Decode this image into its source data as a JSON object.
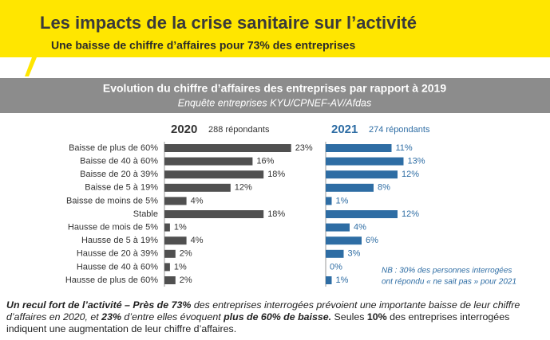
{
  "header": {
    "title": "Les impacts de la crise sanitaire sur l’activité",
    "subtitle": "Une baisse de chiffre d’affaires pour 73% des entreprises"
  },
  "banner": {
    "title": "Evolution du chiffre d’affaires des entreprises par rapport à 2019",
    "subtitle": "Enquête entreprises KYU/CPNEF-AV/Afdas"
  },
  "chart_data": [
    {
      "type": "bar",
      "title": "2020",
      "subtitle": "288 répondants",
      "color": "#505050",
      "categories": [
        "Baisse de plus de 60%",
        "Baisse de 40 à 60%",
        "Baisse de 20 à 39%",
        "Baisse de 5 à 19%",
        "Baisse de moins de 5%",
        "Stable",
        "Hausse de mois de 5%",
        "Hausse de 5 à 19%",
        "Hausse de 20 à 39%",
        "Hausse de 40 à 60%",
        "Hausse de plus de 60%"
      ],
      "values": [
        23,
        16,
        18,
        12,
        4,
        18,
        1,
        4,
        2,
        1,
        2
      ],
      "value_labels": [
        "23%",
        "16%",
        "18%",
        "12%",
        "4%",
        "18%",
        "1%",
        "4%",
        "2%",
        "1%",
        "2%"
      ]
    },
    {
      "type": "bar",
      "title": "2021",
      "subtitle": "274 répondants",
      "color": "#2e6da4",
      "values": [
        11,
        13,
        12,
        8,
        1,
        12,
        4,
        6,
        3,
        0,
        1
      ],
      "value_labels": [
        "11%",
        "13%",
        "12%",
        "8%",
        "1%",
        "12%",
        "4%",
        "6%",
        "3%",
        "0%",
        "1%"
      ],
      "note": [
        "NB : 30% des personnes interrogées",
        "ont répondu « ne sait pas » pour 2021"
      ]
    }
  ],
  "footer": {
    "segments": [
      "Un recul fort de l’activité – Près de 73%",
      " des entreprises interrogées prévoient une importante baisse de leur chiffre d’affaires en 2020, et ",
      "23%",
      " d’entre elles évoquent ",
      "plus de 60% de baisse.",
      " Seules ",
      "10%",
      " des entreprises interrogées indiquent une augmentation de leur chiffre d’affaires."
    ]
  }
}
